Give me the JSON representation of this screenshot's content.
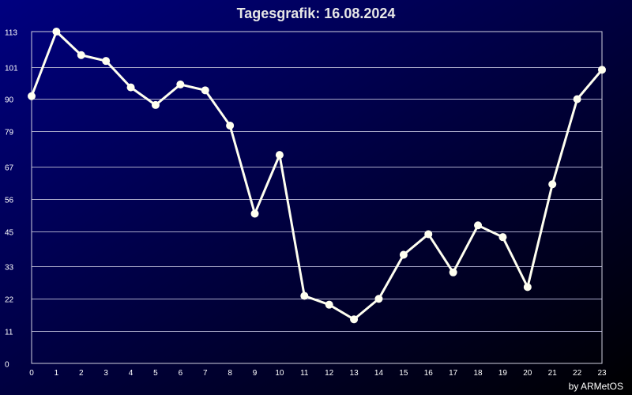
{
  "chart_data": {
    "type": "line",
    "title": "Tagesgrafik: 16.08.2024",
    "credit": "by ARMetOS",
    "xlabel": "",
    "ylabel": "",
    "x": [
      0,
      1,
      2,
      3,
      4,
      5,
      6,
      7,
      8,
      9,
      10,
      11,
      12,
      13,
      14,
      15,
      16,
      17,
      18,
      19,
      20,
      21,
      22,
      23
    ],
    "y_ticks": [
      0,
      11,
      22,
      33,
      45,
      56,
      67,
      79,
      90,
      101,
      113
    ],
    "ylim": [
      0,
      113
    ],
    "grid": true,
    "series": [
      {
        "values": [
          91,
          113,
          105,
          103,
          94,
          88,
          95,
          93,
          81,
          51,
          71,
          23,
          20,
          15,
          22,
          37,
          44,
          31,
          47,
          43,
          26,
          61,
          90,
          100
        ]
      }
    ],
    "colors": {
      "background_start": "#000080",
      "background_end": "#000000",
      "line": "#fffff0",
      "grid": "#a8a8c8",
      "text": "#ffffff"
    }
  }
}
